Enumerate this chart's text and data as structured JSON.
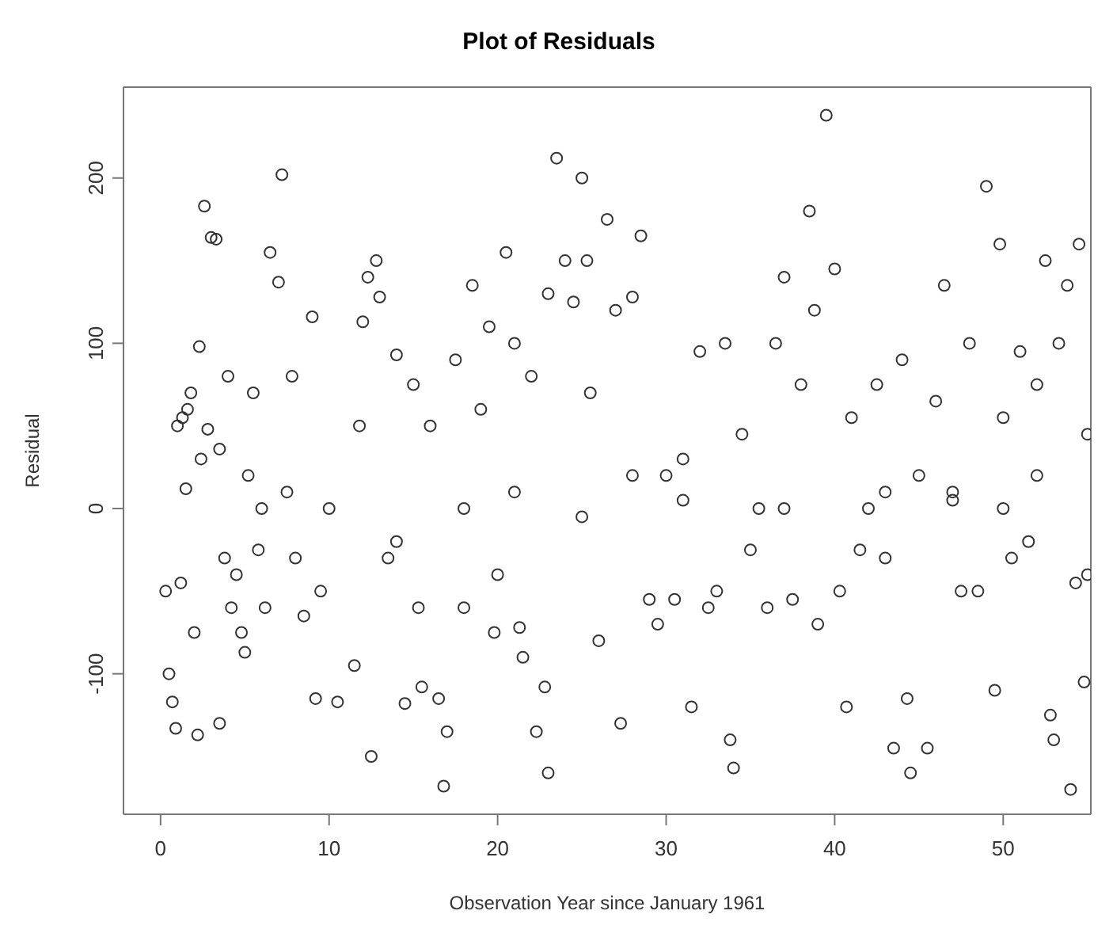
{
  "chart_data": {
    "type": "scatter",
    "title": "Plot of Residuals",
    "xlabel": "Observation Year since January 1961",
    "ylabel": "Residual",
    "xlim": [
      -2.2,
      55.2
    ],
    "ylim": [
      -185,
      255
    ],
    "xticks": [
      0,
      10,
      20,
      30,
      40,
      50
    ],
    "yticks": [
      -100,
      0,
      100,
      200
    ],
    "grid": false,
    "legend": false,
    "marker": "circle",
    "series": [
      {
        "color": "#333333",
        "x": [
          0.3,
          0.5,
          0.7,
          0.9,
          1.0,
          1.2,
          1.3,
          1.5,
          1.6,
          1.8,
          2.0,
          2.2,
          2.3,
          2.4,
          2.6,
          2.8,
          3.0,
          3.3,
          3.5,
          3.5,
          3.8,
          4.0,
          4.2,
          4.5,
          4.8,
          5.0,
          5.2,
          5.5,
          5.8,
          6.2,
          6.5,
          7.0,
          7.2,
          7.5,
          7.8,
          8.0,
          8.5,
          9.0,
          9.2,
          9.5,
          10.0,
          10.5,
          11.5,
          11.8,
          12,
          12.3,
          12.5,
          12.8,
          13,
          13.5,
          14,
          14.5,
          15,
          15.3,
          15.5,
          16,
          16.5,
          16.8,
          17,
          17.5,
          18,
          18.5,
          19,
          19.5,
          19.8,
          20,
          20.5,
          21,
          21.3,
          21.5,
          22,
          22.3,
          22.8,
          23,
          23,
          23.5,
          24,
          24.5,
          25,
          25.3,
          25.5,
          26,
          26.5,
          27,
          27.3,
          28,
          28.5,
          29,
          29.5,
          30,
          30.5,
          31,
          31.5,
          32,
          32.5,
          33,
          33.5,
          33.8,
          34,
          34.5,
          35,
          35.5,
          36,
          36.5,
          37,
          37.5,
          38,
          38.5,
          38.8,
          39,
          39.5,
          40,
          40.3,
          40.7,
          41,
          41.5,
          42,
          42.5,
          43,
          43.5,
          44,
          44.3,
          44.5,
          45,
          45.5,
          46,
          46.5,
          47,
          47.5,
          48,
          48.5,
          49,
          49.5,
          49.8,
          50,
          50.5,
          51,
          51.5,
          52,
          52.5,
          52.8,
          53,
          53.3,
          53.8,
          54,
          54.3,
          54.5,
          54.8,
          55,
          55,
          21,
          25,
          28,
          31,
          37,
          43,
          47,
          50,
          52,
          6,
          14,
          18
        ],
        "values": [
          -50,
          -100,
          -117,
          -133,
          50,
          -45,
          55,
          12,
          60,
          70,
          -75,
          -137,
          98,
          30,
          183,
          48,
          164,
          163,
          -130,
          36,
          -30,
          80,
          -60,
          -40,
          -75,
          -87,
          20,
          70,
          -25,
          -60,
          155,
          137,
          202,
          10,
          80,
          -30,
          -65,
          116,
          -115,
          -50,
          0,
          -117,
          -95,
          50,
          113,
          140,
          -150,
          150,
          128,
          -30,
          93,
          -118,
          75,
          -60,
          -108,
          50,
          -115,
          -168,
          -135,
          90,
          -60,
          135,
          60,
          110,
          -75,
          -40,
          155,
          100,
          -72,
          -90,
          80,
          -135,
          -108,
          -160,
          130,
          212,
          150,
          125,
          200,
          150,
          70,
          -80,
          175,
          120,
          -130,
          128,
          165,
          -55,
          -70,
          20,
          -55,
          5,
          -120,
          95,
          -60,
          -50,
          100,
          -140,
          -157,
          45,
          -25,
          0,
          -60,
          100,
          140,
          -55,
          75,
          180,
          120,
          -70,
          238,
          145,
          -50,
          -120,
          55,
          -25,
          0,
          75,
          -30,
          -145,
          90,
          -115,
          -160,
          20,
          -145,
          65,
          135,
          5,
          -50,
          100,
          -50,
          195,
          -110,
          160,
          55,
          -30,
          95,
          -20,
          75,
          150,
          -125,
          -140,
          100,
          135,
          -170,
          -45,
          160,
          -105,
          45,
          -40,
          10,
          -5,
          20,
          30,
          0,
          10,
          10,
          0,
          20,
          0,
          -20,
          0
        ]
      }
    ]
  }
}
